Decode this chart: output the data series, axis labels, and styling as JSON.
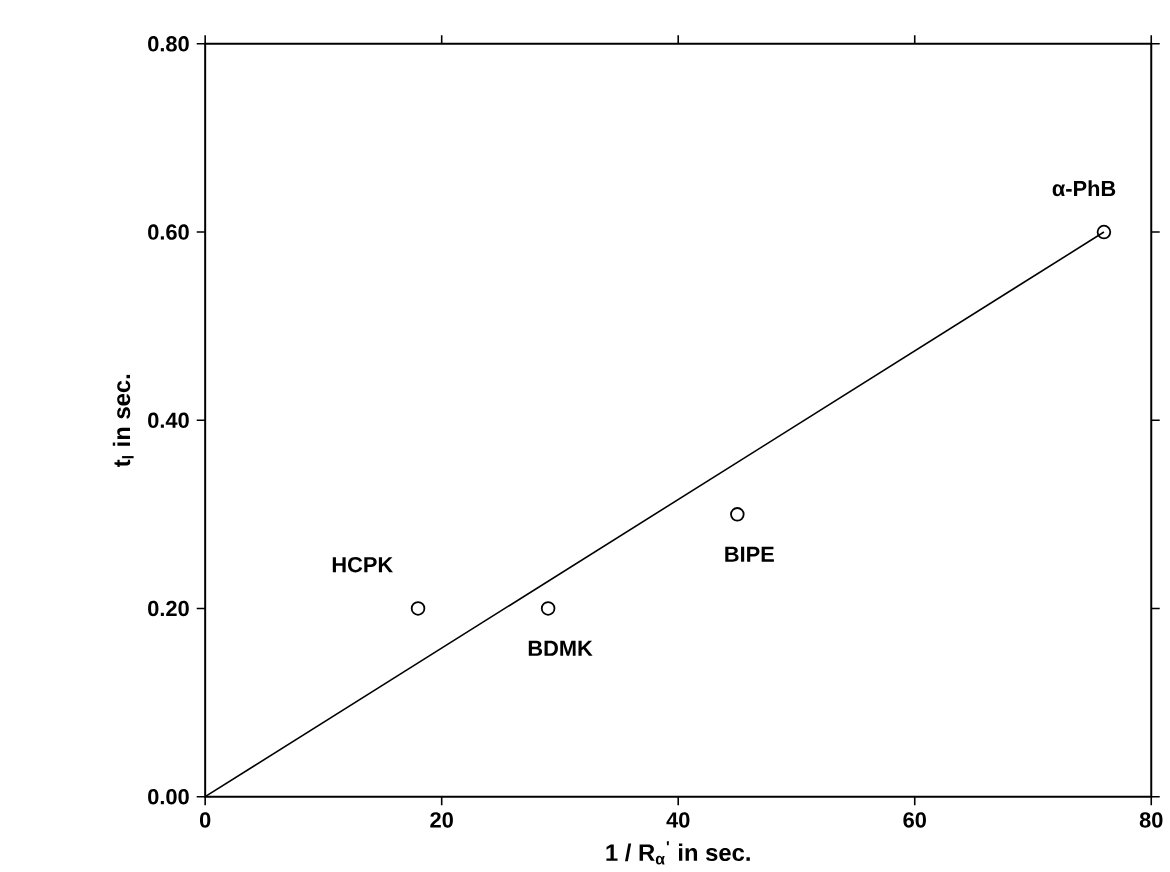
{
  "chart_data": {
    "type": "scatter",
    "xlabel": "1 / R$_{α}$$^{'}$ in sec.",
    "ylabel": "t$_{l}$ in sec.",
    "xlim": [
      0,
      80
    ],
    "xticks": [
      0,
      20,
      40,
      60,
      80
    ],
    "ylim": [
      0,
      0.8
    ],
    "yticks": [
      {
        "value": 0,
        "label": "0.00"
      },
      {
        "value": 0.2,
        "label": "0.20"
      },
      {
        "value": 0.4,
        "label": "0.40"
      },
      {
        "value": 0.6,
        "label": "0.60"
      },
      {
        "value": 0.8,
        "label": "0.80"
      }
    ],
    "line_style": "solid",
    "series": [
      {
        "color": "#000000",
        "marker": "circle",
        "x": [
          18,
          29,
          45,
          76
        ],
        "values": [
          0.2,
          0.2,
          0.3,
          0.6
        ]
      },
      {
        "type": "line",
        "marker": "none",
        "color": "#000000",
        "x": [
          0,
          76
        ],
        "values": [
          0,
          0.6
        ]
      }
    ],
    "annotations": [
      {
        "text": "HCPK",
        "x": 18,
        "y": 0.2
      },
      {
        "text": "BDMK",
        "x": 29,
        "y": 0.2
      },
      {
        "text": "BIPE",
        "x": 45,
        "y": 0.3
      },
      {
        "text": "α-PhB",
        "x": 76,
        "y": 0.6
      }
    ]
  }
}
